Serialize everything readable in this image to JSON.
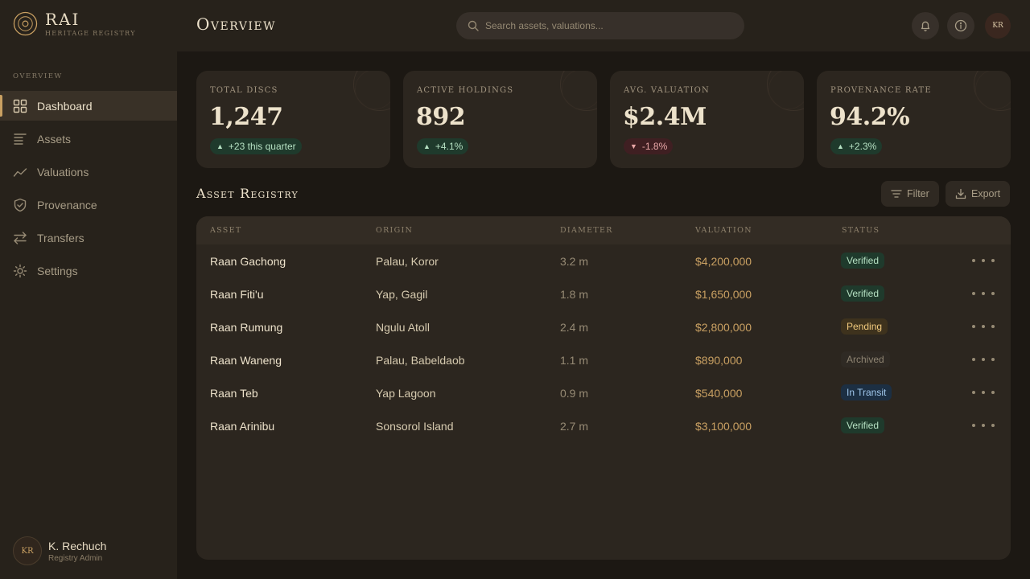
{
  "brand": {
    "name": "RAI",
    "subtitle": "Heritage Registry"
  },
  "sidebar": {
    "heading": "Overview",
    "items": [
      {
        "label": "Dashboard",
        "icon": "grid-icon",
        "active": true
      },
      {
        "label": "Assets",
        "icon": "list-icon",
        "active": false
      },
      {
        "label": "Valuations",
        "icon": "trend-icon",
        "active": false
      },
      {
        "label": "Provenance",
        "icon": "shield-icon",
        "active": false
      },
      {
        "label": "Transfers",
        "icon": "arrows-icon",
        "active": false
      },
      {
        "label": "Settings",
        "icon": "gear-icon",
        "active": false
      }
    ],
    "user": {
      "initials": "KR",
      "name": "K. Rechuch",
      "role": "Registry Admin"
    }
  },
  "header": {
    "title": "Overview",
    "search_placeholder": "Search assets, valuations...",
    "avatar_initials": "KR"
  },
  "stats": [
    {
      "label": "Total Discs",
      "value": "1,247",
      "delta": "+23 this quarter",
      "trend": "up"
    },
    {
      "label": "Active Holdings",
      "value": "892",
      "delta": "+4.1%",
      "trend": "up"
    },
    {
      "label": "Avg. Valuation",
      "value": "$2.4M",
      "delta": "-1.8%",
      "trend": "down"
    },
    {
      "label": "Provenance Rate",
      "value": "94.2%",
      "delta": "+2.3%",
      "trend": "up"
    }
  ],
  "registry": {
    "title": "Asset Registry",
    "filter_label": "Filter",
    "export_label": "Export",
    "columns": [
      "Asset",
      "Origin",
      "Diameter",
      "Valuation",
      "Status"
    ],
    "rows": [
      {
        "asset": "Raan Gachong",
        "origin": "Palau, Koror",
        "diameter": "3.2 m",
        "valuation": "$4,200,000",
        "status": "Verified"
      },
      {
        "asset": "Raan Fiti'u",
        "origin": "Yap, Gagil",
        "diameter": "1.8 m",
        "valuation": "$1,650,000",
        "status": "Verified"
      },
      {
        "asset": "Raan Rumung",
        "origin": "Ngulu Atoll",
        "diameter": "2.4 m",
        "valuation": "$2,800,000",
        "status": "Pending"
      },
      {
        "asset": "Raan Waneng",
        "origin": "Palau, Babeldaob",
        "diameter": "1.1 m",
        "valuation": "$890,000",
        "status": "Archived"
      },
      {
        "asset": "Raan Teb",
        "origin": "Yap Lagoon",
        "diameter": "0.9 m",
        "valuation": "$540,000",
        "status": "In Transit"
      },
      {
        "asset": "Raan Arinibu",
        "origin": "Sonsorol Island",
        "diameter": "2.7 m",
        "valuation": "$3,100,000",
        "status": "Verified"
      }
    ]
  },
  "colors": {
    "accent": "#c9a062",
    "background": "#1c1813",
    "surface": "#2c261f"
  }
}
